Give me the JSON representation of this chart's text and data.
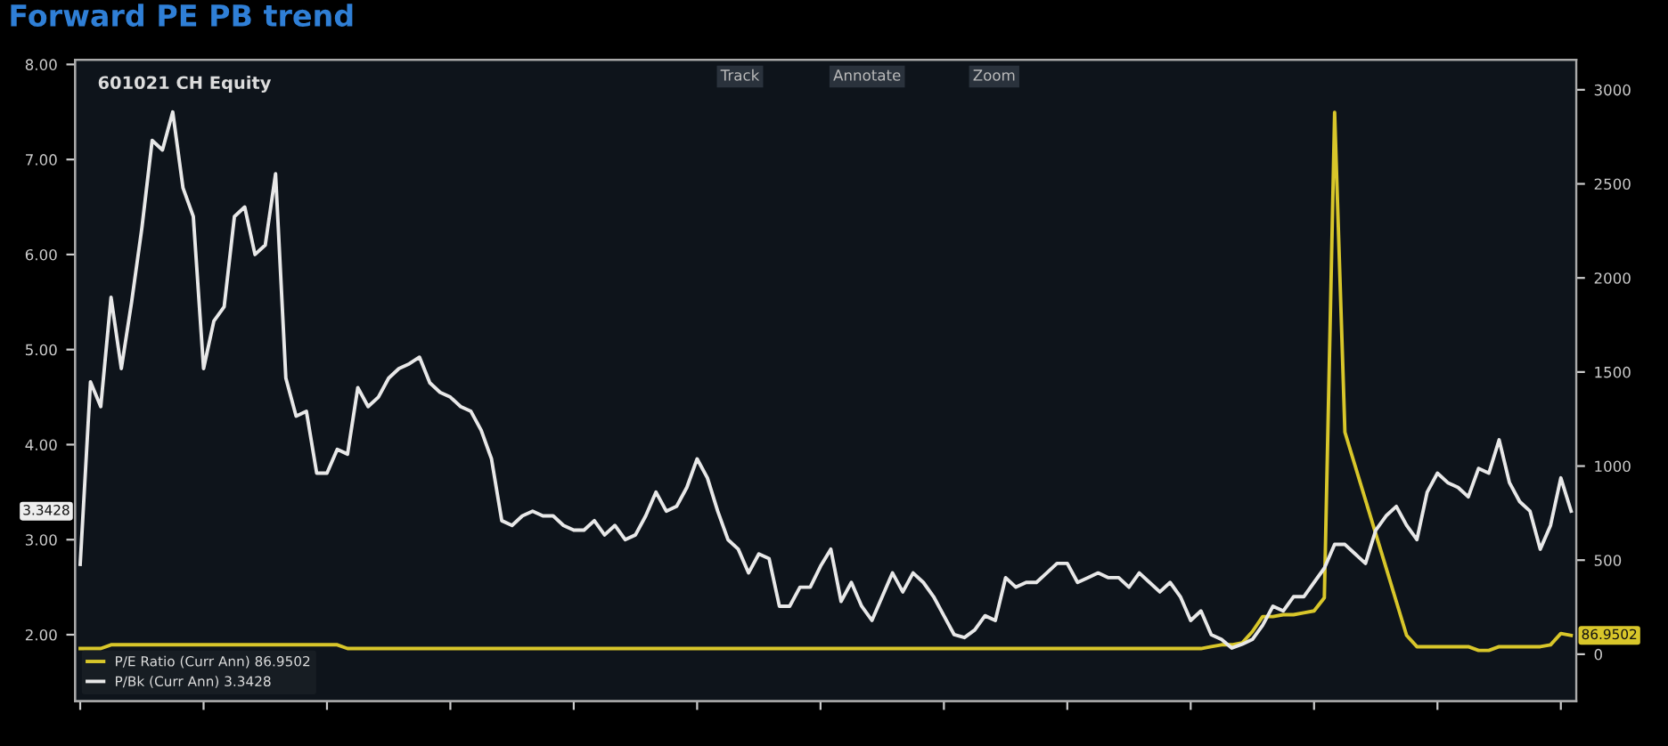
{
  "chart_data": {
    "type": "line",
    "title": "Forward PE PB trend",
    "subtitle": "601021 CH Equity",
    "categories": [
      null,
      null,
      null,
      null,
      null,
      null,
      null,
      null,
      null,
      null,
      null,
      null,
      null,
      null,
      null,
      null,
      null,
      null,
      null,
      null,
      null,
      null,
      null,
      null,
      null,
      null,
      null,
      null,
      null,
      null,
      null,
      null,
      null,
      null,
      null,
      null,
      null,
      null,
      null,
      null,
      null,
      null,
      null,
      null,
      null,
      null,
      null,
      null,
      null,
      null,
      null,
      null,
      null,
      null,
      null,
      null,
      null,
      null,
      null,
      null,
      null,
      null,
      null,
      null,
      null,
      null,
      null,
      null,
      null,
      null,
      null,
      null,
      null,
      null,
      null,
      null,
      null,
      null,
      null,
      null,
      null,
      null,
      null,
      null,
      null,
      null,
      null,
      null,
      null,
      null,
      null,
      null,
      null,
      null,
      null,
      null,
      null,
      null,
      null,
      null,
      null,
      null,
      null,
      null,
      null,
      null,
      null,
      null,
      null,
      null,
      null,
      null,
      null,
      null,
      null,
      null,
      null,
      null,
      null,
      null,
      null,
      null,
      null,
      null,
      null,
      null,
      null,
      null,
      null,
      null,
      null,
      null,
      null,
      null,
      null,
      null,
      null,
      null,
      null,
      null,
      null,
      null,
      null,
      null,
      null,
      null
    ],
    "series": [
      {
        "name": "P/E Ratio (Curr Ann) 86.9502",
        "color": "#d8c62a",
        "axis": "y2",
        "values": [
          30,
          30,
          30,
          50,
          50,
          50,
          50,
          50,
          50,
          50,
          50,
          50,
          50,
          50,
          50,
          50,
          50,
          50,
          50,
          50,
          50,
          50,
          50,
          50,
          50,
          50,
          30,
          30,
          30,
          30,
          30,
          30,
          30,
          30,
          30,
          30,
          30,
          30,
          30,
          30,
          30,
          30,
          30,
          30,
          30,
          30,
          30,
          30,
          30,
          30,
          30,
          30,
          30,
          30,
          30,
          30,
          30,
          30,
          30,
          30,
          30,
          30,
          30,
          30,
          30,
          30,
          30,
          30,
          30,
          30,
          30,
          30,
          30,
          30,
          30,
          30,
          30,
          30,
          30,
          30,
          30,
          30,
          30,
          30,
          30,
          30,
          30,
          30,
          30,
          30,
          30,
          30,
          30,
          30,
          30,
          30,
          30,
          30,
          30,
          30,
          30,
          30,
          30,
          30,
          30,
          30,
          30,
          30,
          30,
          30,
          40,
          50,
          50,
          60,
          120,
          200,
          200,
          210,
          210,
          220,
          230,
          300,
          2880,
          1180,
          1000,
          820,
          640,
          460,
          280,
          100,
          40,
          40,
          40,
          40,
          40,
          40,
          20,
          20,
          40,
          40,
          40,
          40,
          40,
          50,
          110,
          100
        ]
      },
      {
        "name": "P/Bk (Curr Ann) 3.3428",
        "color": "#e8e8e8",
        "values": [
          2.74,
          4.66,
          4.4,
          5.55,
          4.8,
          5.5,
          6.28,
          7.2,
          7.1,
          7.5,
          6.7,
          6.4,
          4.8,
          5.3,
          5.45,
          6.4,
          6.5,
          6.0,
          6.1,
          6.85,
          4.7,
          4.3,
          4.35,
          3.7,
          3.7,
          3.95,
          3.9,
          4.6,
          4.4,
          4.5,
          4.7,
          4.8,
          4.85,
          4.92,
          4.65,
          4.55,
          4.5,
          4.4,
          4.35,
          4.15,
          3.85,
          3.2,
          3.15,
          3.25,
          3.3,
          3.25,
          3.25,
          3.15,
          3.1,
          3.1,
          3.2,
          3.05,
          3.15,
          3.0,
          3.05,
          3.25,
          3.5,
          3.3,
          3.35,
          3.55,
          3.85,
          3.65,
          3.3,
          3.0,
          2.9,
          2.65,
          2.85,
          2.8,
          2.3,
          2.3,
          2.5,
          2.5,
          2.72,
          2.9,
          2.35,
          2.55,
          2.3,
          2.15,
          2.4,
          2.65,
          2.45,
          2.65,
          2.55,
          2.4,
          2.2,
          2.0,
          1.97,
          2.05,
          2.2,
          2.15,
          2.6,
          2.5,
          2.55,
          2.55,
          2.65,
          2.75,
          2.75,
          2.55,
          2.6,
          2.65,
          2.6,
          2.6,
          2.5,
          2.65,
          2.55,
          2.45,
          2.55,
          2.4,
          2.15,
          2.25,
          2.0,
          1.95,
          1.86,
          1.9,
          1.95,
          2.1,
          2.3,
          2.25,
          2.4,
          2.4,
          2.55,
          2.7,
          2.95,
          2.95,
          2.85,
          2.75,
          3.1,
          3.25,
          3.35,
          3.15,
          3.0,
          3.5,
          3.7,
          3.6,
          3.55,
          3.45,
          3.75,
          3.7,
          4.05,
          3.6,
          3.4,
          3.3,
          2.9,
          3.15,
          3.65,
          3.3
        ]
      }
    ],
    "ylim": [
      1.3,
      8.05
    ],
    "yticks": [
      {
        "value": 2,
        "label": "2.00"
      },
      {
        "value": 3,
        "label": "3.00"
      },
      {
        "value": 4,
        "label": "4.00"
      },
      {
        "value": 5,
        "label": "5.00"
      },
      {
        "value": 6,
        "label": "6.00"
      },
      {
        "value": 7,
        "label": "7.00"
      },
      {
        "value": 8,
        "label": "8.00"
      }
    ],
    "y2lim": [
      -250,
      3160
    ],
    "y2ticks": [
      0,
      500,
      1000,
      1500,
      2000,
      2500,
      3000
    ],
    "annotations": [
      "3.3428",
      "86.9502",
      "Track",
      "Annotate",
      "Zoom"
    ],
    "legend": "bottom left",
    "line_style": "solid",
    "marker": "none"
  }
}
